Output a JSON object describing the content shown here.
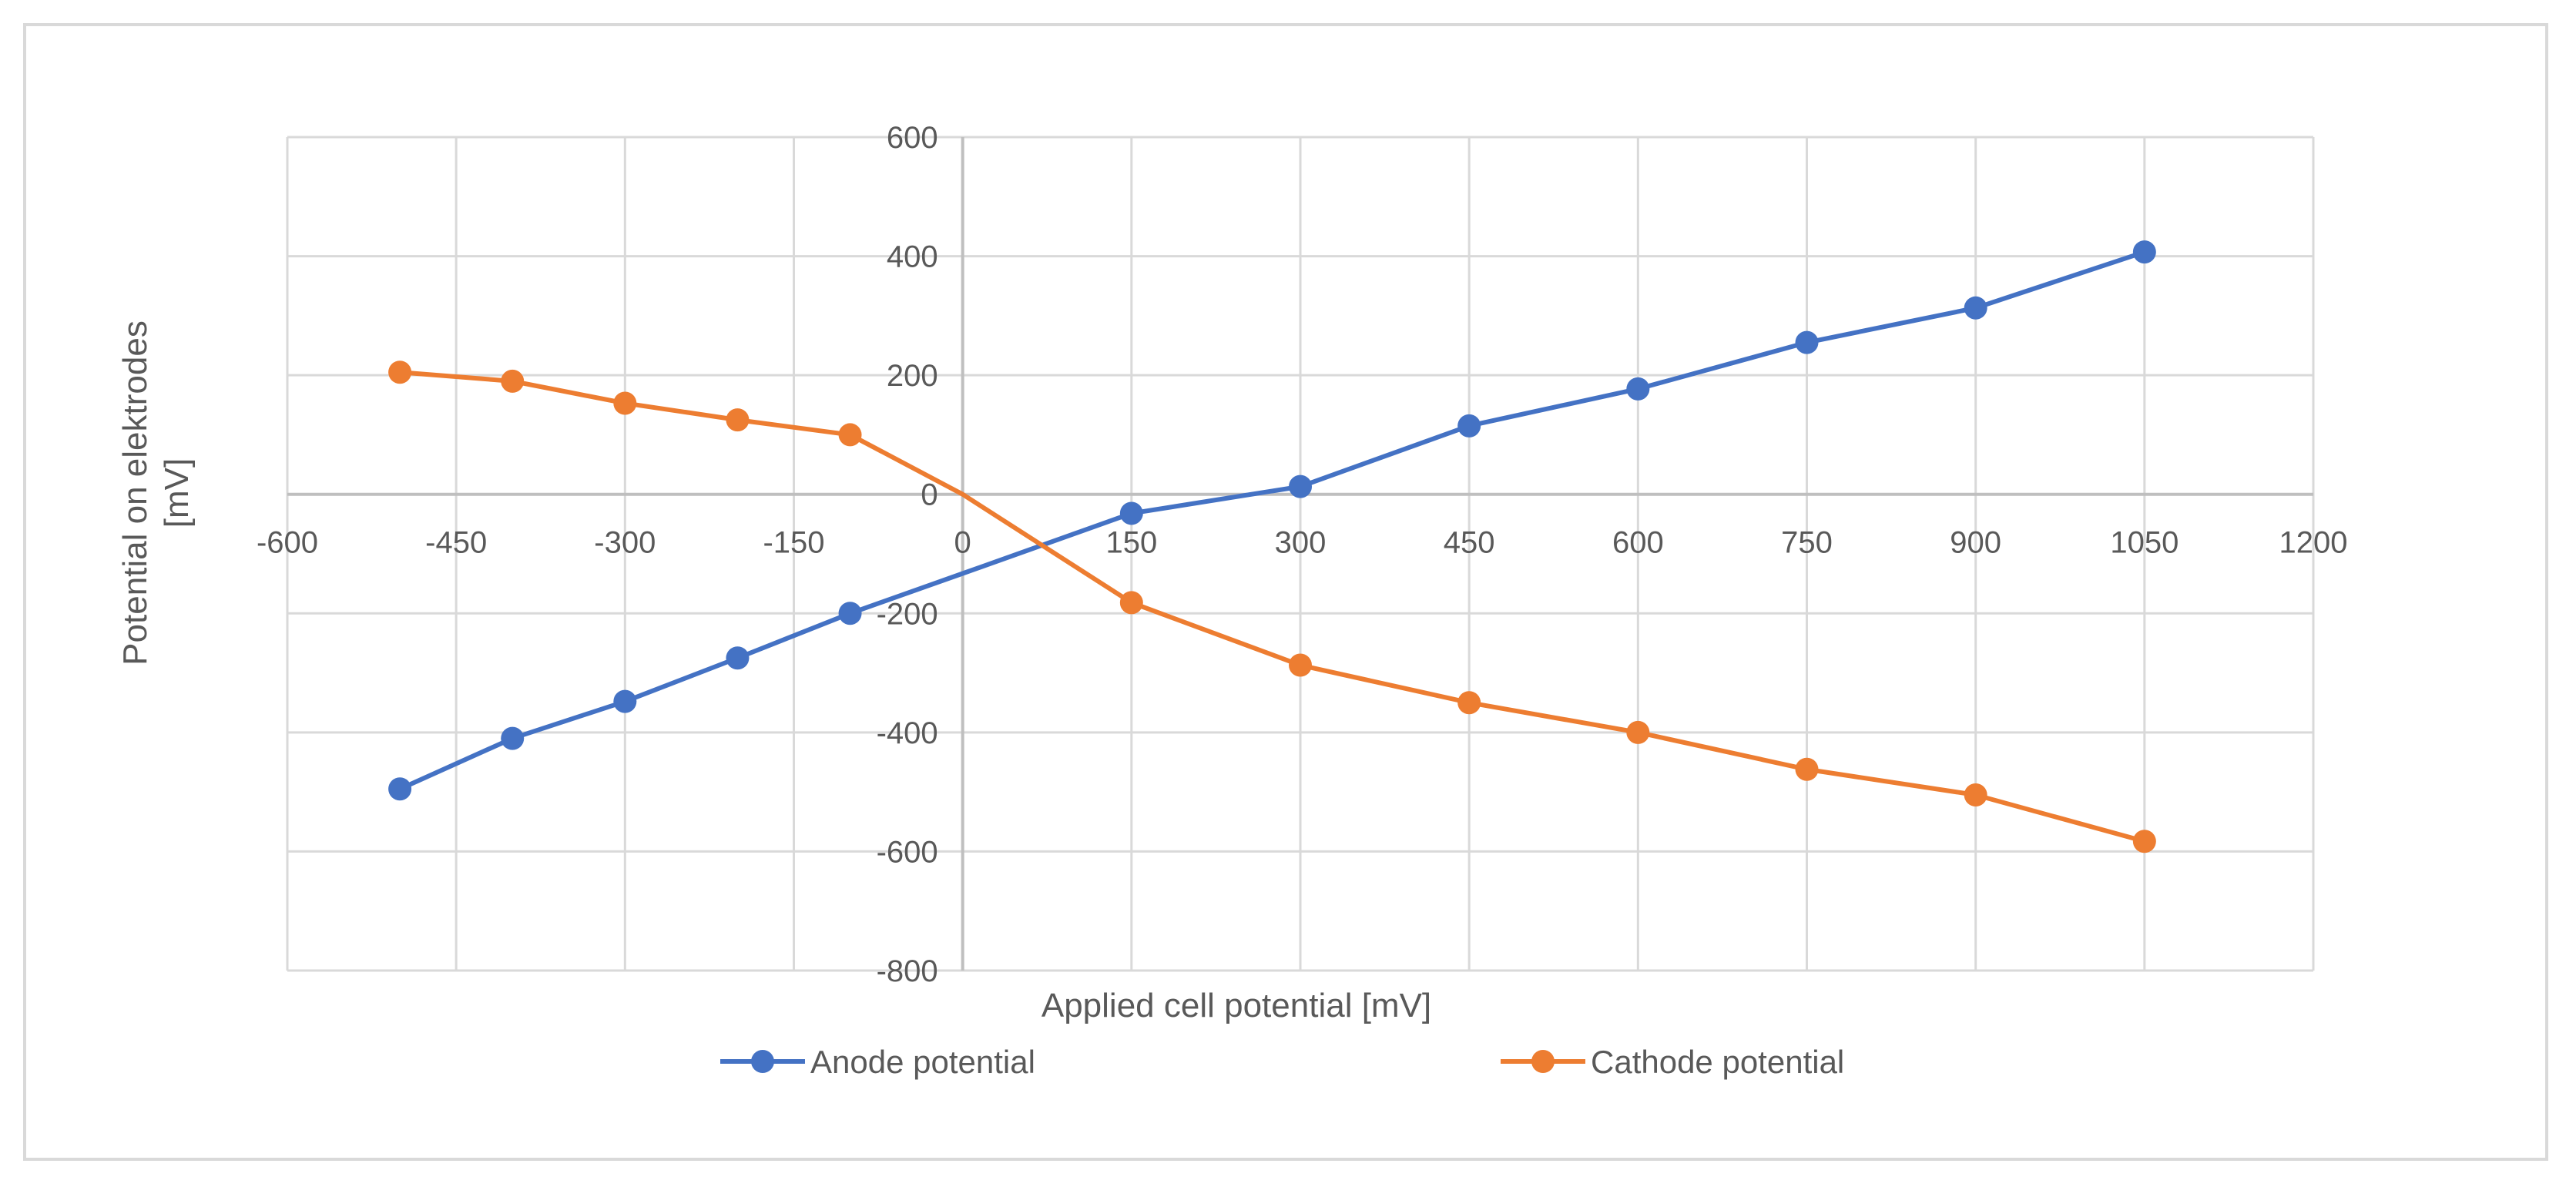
{
  "chart_data": {
    "type": "line",
    "title": "",
    "xlabel": "Applied cell potential [mV]",
    "ylabel_line1": "Potential on elektrodes",
    "ylabel_line2": "[mV]",
    "xlim": [
      -600,
      1200
    ],
    "ylim": [
      -800,
      600
    ],
    "x_ticks": [
      -600,
      -450,
      -300,
      -150,
      0,
      150,
      300,
      450,
      600,
      750,
      900,
      1050,
      1200
    ],
    "y_ticks": [
      -800,
      -600,
      -400,
      -200,
      0,
      200,
      400,
      600
    ],
    "x_tick_labels": [
      "-600",
      "-450",
      "-300",
      "-150",
      "0",
      "150",
      "300",
      "450",
      "600",
      "750",
      "900",
      "1050",
      "1200"
    ],
    "y_tick_labels": [
      "-800",
      "-600",
      "-400",
      "-200",
      "0",
      "200",
      "400",
      "600"
    ],
    "grid": true,
    "legend_position": "bottom",
    "series": [
      {
        "name": "Anode potential",
        "color": "#4472c4",
        "points": [
          {
            "x": -500,
            "y": -495
          },
          {
            "x": -400,
            "y": -410
          },
          {
            "x": -300,
            "y": -348
          },
          {
            "x": -200,
            "y": -275
          },
          {
            "x": -100,
            "y": -200
          },
          {
            "x": 150,
            "y": -32
          },
          {
            "x": 300,
            "y": 13
          },
          {
            "x": 450,
            "y": 115
          },
          {
            "x": 600,
            "y": 177
          },
          {
            "x": 750,
            "y": 255
          },
          {
            "x": 900,
            "y": 313
          },
          {
            "x": 1050,
            "y": 407
          }
        ],
        "line_through": [
          {
            "x": -500,
            "y": -495
          },
          {
            "x": -400,
            "y": -410
          },
          {
            "x": -300,
            "y": -348
          },
          {
            "x": -200,
            "y": -275
          },
          {
            "x": -100,
            "y": -200
          },
          {
            "x": 0,
            "y": -133
          },
          {
            "x": 150,
            "y": -32
          },
          {
            "x": 300,
            "y": 13
          },
          {
            "x": 450,
            "y": 115
          },
          {
            "x": 600,
            "y": 177
          },
          {
            "x": 750,
            "y": 255
          },
          {
            "x": 900,
            "y": 313
          },
          {
            "x": 1050,
            "y": 407
          }
        ]
      },
      {
        "name": "Cathode potential",
        "color": "#ed7d31",
        "points": [
          {
            "x": -500,
            "y": 205
          },
          {
            "x": -400,
            "y": 190
          },
          {
            "x": -300,
            "y": 153
          },
          {
            "x": -200,
            "y": 125
          },
          {
            "x": -100,
            "y": 100
          },
          {
            "x": 150,
            "y": -182
          },
          {
            "x": 300,
            "y": -287
          },
          {
            "x": 450,
            "y": -350
          },
          {
            "x": 600,
            "y": -400
          },
          {
            "x": 750,
            "y": -462
          },
          {
            "x": 900,
            "y": -505
          },
          {
            "x": 1050,
            "y": -583
          }
        ],
        "line_through": [
          {
            "x": -500,
            "y": 205
          },
          {
            "x": -400,
            "y": 190
          },
          {
            "x": -300,
            "y": 153
          },
          {
            "x": -200,
            "y": 125
          },
          {
            "x": -100,
            "y": 100
          },
          {
            "x": 0,
            "y": 0
          },
          {
            "x": 150,
            "y": -182
          },
          {
            "x": 300,
            "y": -287
          },
          {
            "x": 450,
            "y": -350
          },
          {
            "x": 600,
            "y": -400
          },
          {
            "x": 750,
            "y": -462
          },
          {
            "x": 900,
            "y": -505
          },
          {
            "x": 1050,
            "y": -583
          }
        ]
      }
    ]
  }
}
